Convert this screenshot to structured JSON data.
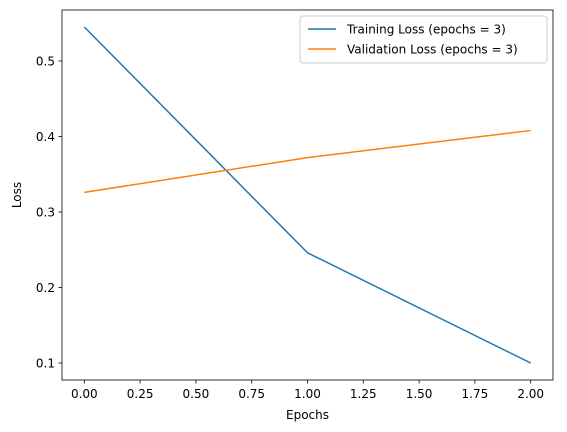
{
  "chart_data": {
    "type": "line",
    "title": "",
    "xlabel": "Epochs",
    "ylabel": "Loss",
    "xlim": [
      -0.1,
      2.1
    ],
    "ylim": [
      0.0775,
      0.5675
    ],
    "x_ticks": [
      "0.00",
      "0.25",
      "0.50",
      "0.75",
      "1.00",
      "1.25",
      "1.50",
      "1.75",
      "2.00"
    ],
    "y_ticks": [
      "0.1",
      "0.2",
      "0.3",
      "0.4",
      "0.5"
    ],
    "grid": false,
    "legend_position": "upper right",
    "series": [
      {
        "name": "Training Loss (epochs = 3)",
        "color": "#1f77b4",
        "x": [
          0,
          1,
          2
        ],
        "y": [
          0.545,
          0.246,
          0.1
        ]
      },
      {
        "name": "Validation Loss (epochs = 3)",
        "color": "#ff7f0e",
        "x": [
          0,
          1,
          2
        ],
        "y": [
          0.326,
          0.372,
          0.408
        ]
      }
    ]
  }
}
